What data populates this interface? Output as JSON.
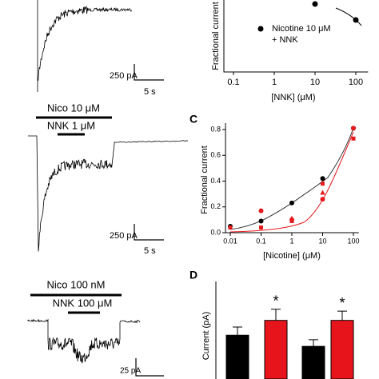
{
  "traces": {
    "top": {
      "scale_current": "250 pA",
      "scale_time": "5 s"
    },
    "middle": {
      "agonist": "Nico 10 μM",
      "modulator": "NNK 1 μM",
      "scale_current": "250 pA",
      "scale_time": "5 s"
    },
    "bottom": {
      "agonist": "Nico 100 nM",
      "modulator": "NNK 100 μM",
      "scale_current": "25 pA"
    }
  },
  "panel_b": {
    "type": "scatter",
    "y_label": "Fractional current",
    "x_label": "[NNK] (μM)",
    "legend_line1": "Nicotine 10 μM",
    "legend_line2": "+ NNK",
    "log_x": true,
    "xlim": [
      0.05,
      200
    ],
    "ylim": [
      0.4,
      0.8
    ],
    "xticks": [
      0.1,
      1,
      10,
      100
    ],
    "x": [
      10,
      100
    ],
    "values": [
      0.74,
      0.66
    ],
    "color": "#000000"
  },
  "panel_c": {
    "type": "scatter",
    "letter": "C",
    "y_label": "Fractional current",
    "x_label": "[Nicotine] (μM)",
    "log_x": true,
    "xlim": [
      0.007,
      150
    ],
    "ylim": [
      0.0,
      0.85
    ],
    "xticks": [
      0.01,
      0.1,
      1,
      10,
      100
    ],
    "yticks": [
      {
        "value": 0,
        "label": "0.0"
      },
      0.2,
      0.4,
      0.6,
      0.8
    ],
    "series": [
      {
        "marker": "circle",
        "color": "#000000",
        "x": [
          0.01,
          0.1,
          1,
          10,
          100
        ],
        "values": [
          0.05,
          0.09,
          0.23,
          0.42,
          0.81
        ]
      },
      {
        "marker": "circle",
        "color": "#e41a1c",
        "x": [
          0.1,
          1,
          10,
          100
        ],
        "values": [
          0.17,
          0.1,
          0.26,
          0.81
        ]
      },
      {
        "marker": "triangle",
        "color": "#e41a1c",
        "x": [
          1,
          10
        ],
        "values": [
          0.11,
          0.31
        ]
      },
      {
        "marker": "square",
        "color": "#e41a1c",
        "x": [
          0.01,
          0.1,
          1,
          10,
          100
        ],
        "values": [
          0.04,
          0.04,
          0.09,
          0.38,
          0.73
        ]
      }
    ]
  },
  "panel_d": {
    "type": "bar",
    "letter": "D",
    "y_label": "Current (pA)",
    "ylim": [
      0,
      250
    ],
    "values": [
      118,
      158,
      88,
      158
    ],
    "errors": [
      22,
      30,
      18,
      25
    ],
    "colors": [
      "#000000",
      "#e8141c",
      "#000000",
      "#e8141c"
    ],
    "annotations": [
      "*",
      "*"
    ]
  }
}
